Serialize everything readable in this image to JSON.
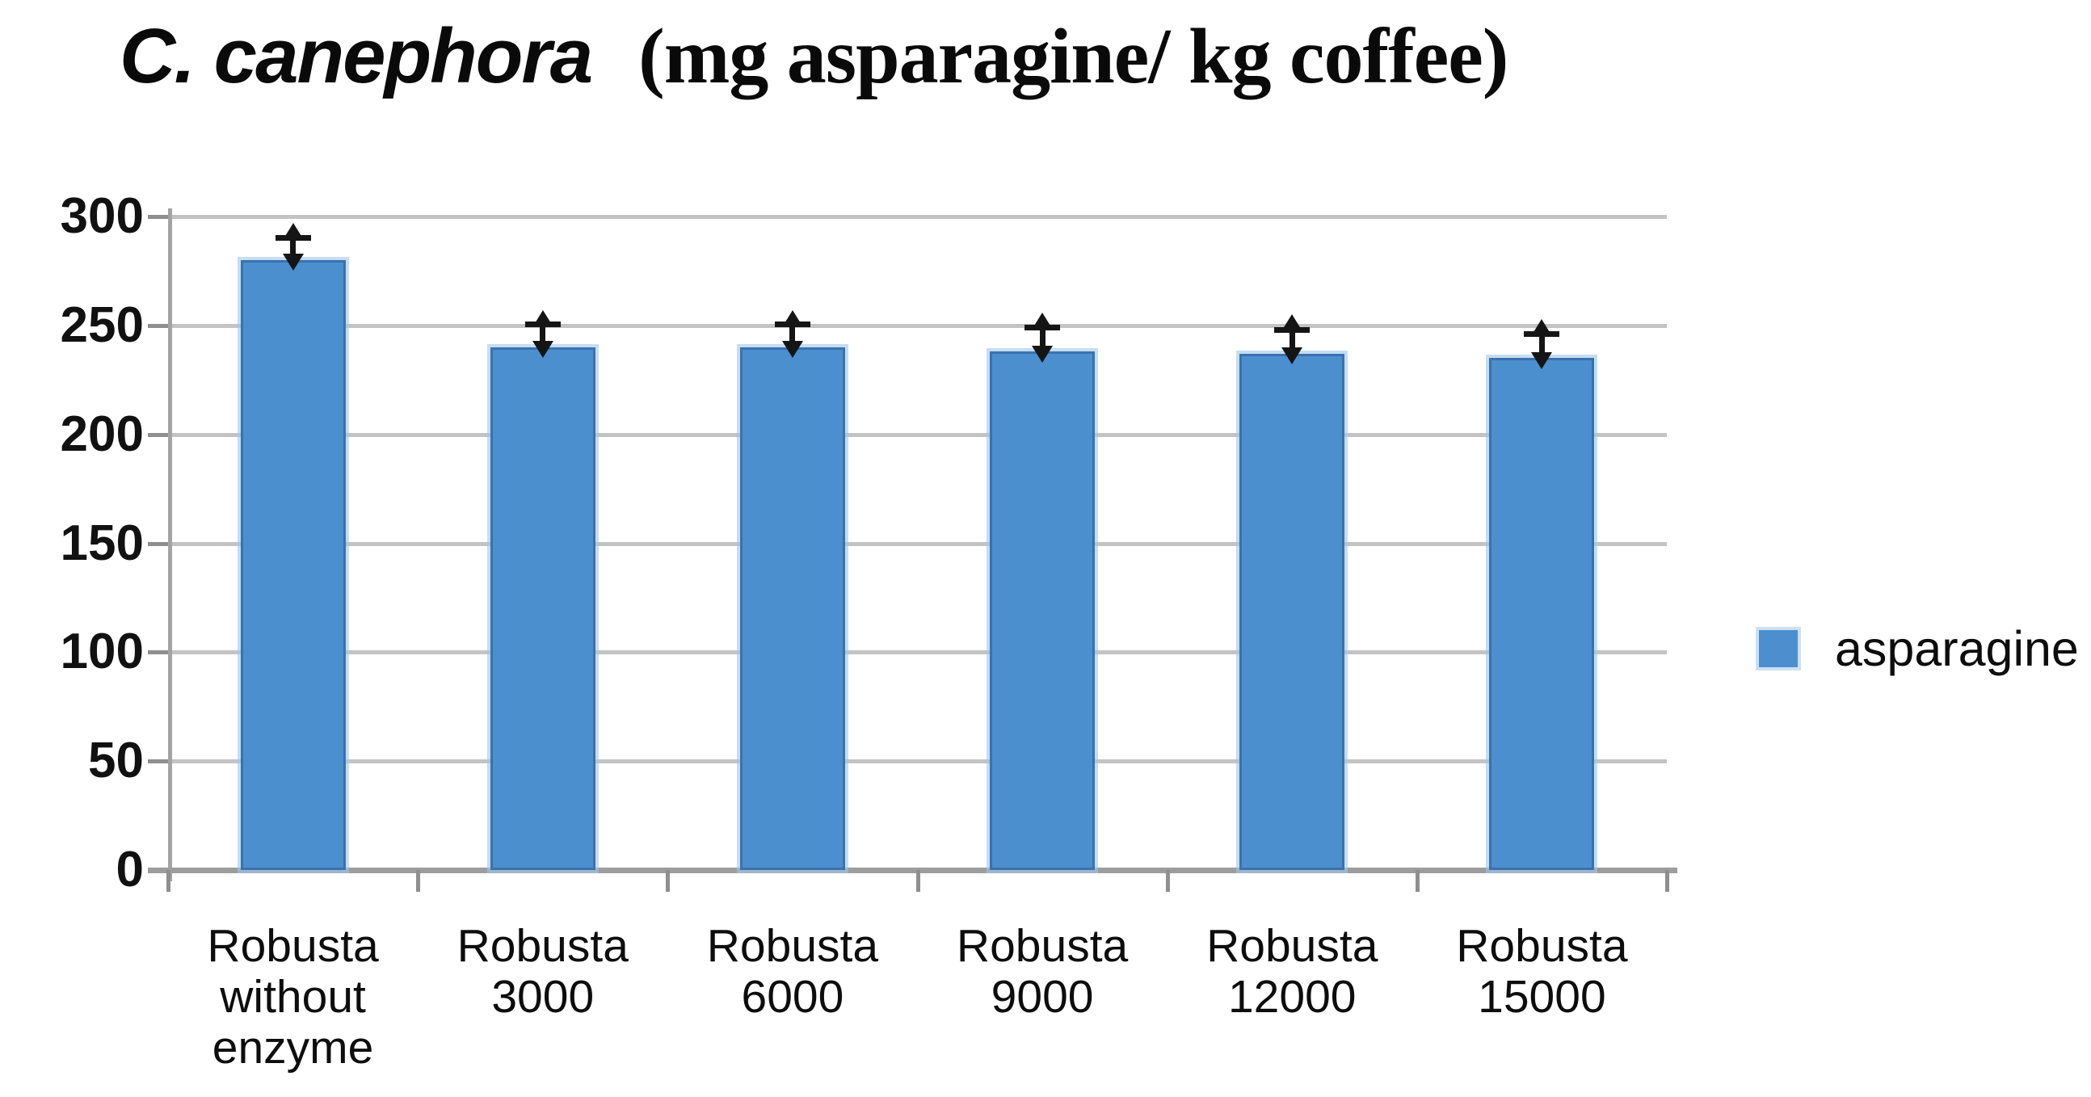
{
  "title": {
    "species": "C. canephora",
    "units": "(mg asparagine/ kg coffee)"
  },
  "legend": {
    "label": "asparagine"
  },
  "colors": {
    "bar_fill": "#4c8fce",
    "bar_border": "#3a72ae",
    "gridline": "#c3c3c3",
    "axis": "#9d9d9d",
    "error_bar": "#151515",
    "text": "#0d0d0d",
    "background": "#ffffff"
  },
  "chart_data": {
    "type": "bar",
    "title": "C. canephora (mg asparagine/ kg coffee)",
    "xlabel": "",
    "ylabel": "",
    "categories": [
      "Robusta without enzyme",
      "Robusta 3000",
      "Robusta 6000",
      "Robusta 9000",
      "Robusta 12000",
      "Robusta 15000"
    ],
    "category_lines": [
      [
        "Robusta",
        "without",
        "enzyme"
      ],
      [
        "Robusta",
        "3000"
      ],
      [
        "Robusta",
        "6000"
      ],
      [
        "Robusta",
        "9000"
      ],
      [
        "Robusta",
        "12000"
      ],
      [
        "Robusta",
        "15000"
      ]
    ],
    "series": [
      {
        "name": "asparagine",
        "values": [
          280,
          240,
          240,
          238,
          237,
          235
        ]
      }
    ],
    "error_plus": [
      17,
      17,
      17,
      18,
      18,
      18
    ],
    "error_minus": [
      5,
      5,
      5,
      5,
      5,
      5
    ],
    "ylim": [
      0,
      300
    ],
    "yticks": [
      0,
      50,
      100,
      150,
      200,
      250,
      300
    ],
    "grid": "horizontal",
    "legend_position": "right"
  }
}
